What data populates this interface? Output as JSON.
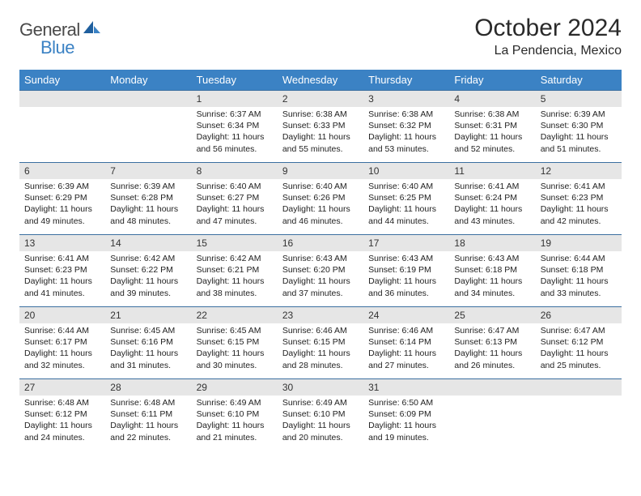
{
  "logo": {
    "part1": "General",
    "part2": "Blue"
  },
  "title": "October 2024",
  "subtitle": "La Pendencia, Mexico",
  "colors": {
    "header_bg": "#3b82c4",
    "header_text": "#ffffff",
    "row_border": "#3b6fa0",
    "daynum_bg": "#e6e6e6",
    "logo_gray": "#4a4a4a",
    "logo_blue": "#3b82c4",
    "text": "#222222"
  },
  "weekdays": [
    "Sunday",
    "Monday",
    "Tuesday",
    "Wednesday",
    "Thursday",
    "Friday",
    "Saturday"
  ],
  "weeks": [
    [
      {
        "day": "",
        "empty": true
      },
      {
        "day": "",
        "empty": true
      },
      {
        "day": "1",
        "sunrise": "Sunrise: 6:37 AM",
        "sunset": "Sunset: 6:34 PM",
        "daylight": "Daylight: 11 hours and 56 minutes."
      },
      {
        "day": "2",
        "sunrise": "Sunrise: 6:38 AM",
        "sunset": "Sunset: 6:33 PM",
        "daylight": "Daylight: 11 hours and 55 minutes."
      },
      {
        "day": "3",
        "sunrise": "Sunrise: 6:38 AM",
        "sunset": "Sunset: 6:32 PM",
        "daylight": "Daylight: 11 hours and 53 minutes."
      },
      {
        "day": "4",
        "sunrise": "Sunrise: 6:38 AM",
        "sunset": "Sunset: 6:31 PM",
        "daylight": "Daylight: 11 hours and 52 minutes."
      },
      {
        "day": "5",
        "sunrise": "Sunrise: 6:39 AM",
        "sunset": "Sunset: 6:30 PM",
        "daylight": "Daylight: 11 hours and 51 minutes."
      }
    ],
    [
      {
        "day": "6",
        "sunrise": "Sunrise: 6:39 AM",
        "sunset": "Sunset: 6:29 PM",
        "daylight": "Daylight: 11 hours and 49 minutes."
      },
      {
        "day": "7",
        "sunrise": "Sunrise: 6:39 AM",
        "sunset": "Sunset: 6:28 PM",
        "daylight": "Daylight: 11 hours and 48 minutes."
      },
      {
        "day": "8",
        "sunrise": "Sunrise: 6:40 AM",
        "sunset": "Sunset: 6:27 PM",
        "daylight": "Daylight: 11 hours and 47 minutes."
      },
      {
        "day": "9",
        "sunrise": "Sunrise: 6:40 AM",
        "sunset": "Sunset: 6:26 PM",
        "daylight": "Daylight: 11 hours and 46 minutes."
      },
      {
        "day": "10",
        "sunrise": "Sunrise: 6:40 AM",
        "sunset": "Sunset: 6:25 PM",
        "daylight": "Daylight: 11 hours and 44 minutes."
      },
      {
        "day": "11",
        "sunrise": "Sunrise: 6:41 AM",
        "sunset": "Sunset: 6:24 PM",
        "daylight": "Daylight: 11 hours and 43 minutes."
      },
      {
        "day": "12",
        "sunrise": "Sunrise: 6:41 AM",
        "sunset": "Sunset: 6:23 PM",
        "daylight": "Daylight: 11 hours and 42 minutes."
      }
    ],
    [
      {
        "day": "13",
        "sunrise": "Sunrise: 6:41 AM",
        "sunset": "Sunset: 6:23 PM",
        "daylight": "Daylight: 11 hours and 41 minutes."
      },
      {
        "day": "14",
        "sunrise": "Sunrise: 6:42 AM",
        "sunset": "Sunset: 6:22 PM",
        "daylight": "Daylight: 11 hours and 39 minutes."
      },
      {
        "day": "15",
        "sunrise": "Sunrise: 6:42 AM",
        "sunset": "Sunset: 6:21 PM",
        "daylight": "Daylight: 11 hours and 38 minutes."
      },
      {
        "day": "16",
        "sunrise": "Sunrise: 6:43 AM",
        "sunset": "Sunset: 6:20 PM",
        "daylight": "Daylight: 11 hours and 37 minutes."
      },
      {
        "day": "17",
        "sunrise": "Sunrise: 6:43 AM",
        "sunset": "Sunset: 6:19 PM",
        "daylight": "Daylight: 11 hours and 36 minutes."
      },
      {
        "day": "18",
        "sunrise": "Sunrise: 6:43 AM",
        "sunset": "Sunset: 6:18 PM",
        "daylight": "Daylight: 11 hours and 34 minutes."
      },
      {
        "day": "19",
        "sunrise": "Sunrise: 6:44 AM",
        "sunset": "Sunset: 6:18 PM",
        "daylight": "Daylight: 11 hours and 33 minutes."
      }
    ],
    [
      {
        "day": "20",
        "sunrise": "Sunrise: 6:44 AM",
        "sunset": "Sunset: 6:17 PM",
        "daylight": "Daylight: 11 hours and 32 minutes."
      },
      {
        "day": "21",
        "sunrise": "Sunrise: 6:45 AM",
        "sunset": "Sunset: 6:16 PM",
        "daylight": "Daylight: 11 hours and 31 minutes."
      },
      {
        "day": "22",
        "sunrise": "Sunrise: 6:45 AM",
        "sunset": "Sunset: 6:15 PM",
        "daylight": "Daylight: 11 hours and 30 minutes."
      },
      {
        "day": "23",
        "sunrise": "Sunrise: 6:46 AM",
        "sunset": "Sunset: 6:15 PM",
        "daylight": "Daylight: 11 hours and 28 minutes."
      },
      {
        "day": "24",
        "sunrise": "Sunrise: 6:46 AM",
        "sunset": "Sunset: 6:14 PM",
        "daylight": "Daylight: 11 hours and 27 minutes."
      },
      {
        "day": "25",
        "sunrise": "Sunrise: 6:47 AM",
        "sunset": "Sunset: 6:13 PM",
        "daylight": "Daylight: 11 hours and 26 minutes."
      },
      {
        "day": "26",
        "sunrise": "Sunrise: 6:47 AM",
        "sunset": "Sunset: 6:12 PM",
        "daylight": "Daylight: 11 hours and 25 minutes."
      }
    ],
    [
      {
        "day": "27",
        "sunrise": "Sunrise: 6:48 AM",
        "sunset": "Sunset: 6:12 PM",
        "daylight": "Daylight: 11 hours and 24 minutes."
      },
      {
        "day": "28",
        "sunrise": "Sunrise: 6:48 AM",
        "sunset": "Sunset: 6:11 PM",
        "daylight": "Daylight: 11 hours and 22 minutes."
      },
      {
        "day": "29",
        "sunrise": "Sunrise: 6:49 AM",
        "sunset": "Sunset: 6:10 PM",
        "daylight": "Daylight: 11 hours and 21 minutes."
      },
      {
        "day": "30",
        "sunrise": "Sunrise: 6:49 AM",
        "sunset": "Sunset: 6:10 PM",
        "daylight": "Daylight: 11 hours and 20 minutes."
      },
      {
        "day": "31",
        "sunrise": "Sunrise: 6:50 AM",
        "sunset": "Sunset: 6:09 PM",
        "daylight": "Daylight: 11 hours and 19 minutes."
      },
      {
        "day": "",
        "empty": true
      },
      {
        "day": "",
        "empty": true
      }
    ]
  ]
}
